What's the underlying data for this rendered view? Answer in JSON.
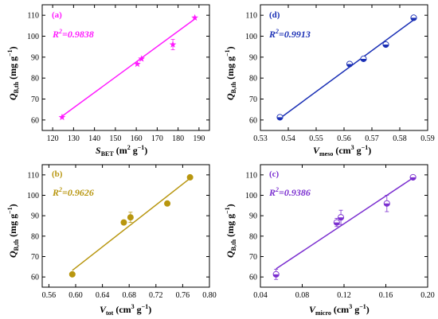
{
  "chart_data": [
    {
      "type": "scatter",
      "panel_label": "(a)",
      "r2_label": "R² =0.9838",
      "r2_prefix": "R",
      "r2_sup": "2",
      "r2_value": "=0.9838",
      "xlabel": {
        "main": "S",
        "sub": "BET",
        "unit": " (m",
        "unit_sup": "2",
        "unit_tail": " g",
        "unit_sup2": "−1",
        "close": ")"
      },
      "ylabel": {
        "main": "Q",
        "sub": "B,th",
        "unit": " (mg g",
        "unit_sup": "−1",
        "close": ")"
      },
      "xlim": [
        115,
        195
      ],
      "ylim": [
        55,
        115
      ],
      "xticks": [
        "120",
        "130",
        "140",
        "150",
        "160",
        "170",
        "180",
        "190"
      ],
      "xtick_values": [
        120,
        130,
        140,
        150,
        160,
        170,
        180,
        190
      ],
      "yticks": [
        "60",
        "70",
        "80",
        "90",
        "100",
        "110"
      ],
      "ytick_values": [
        60,
        70,
        80,
        90,
        100,
        110
      ],
      "marker": "star",
      "color": "#ff1aff",
      "x": [
        124.5,
        160.5,
        162.5,
        177.5,
        188
      ],
      "y": [
        61.3,
        86.7,
        89.2,
        96,
        108.8
      ],
      "fit_line": [
        [
          124.5,
          61.8
        ],
        [
          188,
          108.2
        ]
      ],
      "error": [
        0,
        0,
        0,
        2.5,
        0
      ]
    },
    {
      "type": "scatter",
      "panel_label": "(d)",
      "r2_prefix": "R",
      "r2_sup": "2",
      "r2_value": "=0.9913",
      "xlabel": {
        "main": "V",
        "sub": "meso",
        "unit": " (cm",
        "unit_sup": "3",
        "unit_tail": " g",
        "unit_sup2": "−1",
        "close": ")"
      },
      "ylabel": {
        "main": "Q",
        "sub": "B,th",
        "unit": " (mg g",
        "unit_sup": "−1",
        "close": ")"
      },
      "xlim": [
        0.53,
        0.59
      ],
      "ylim": [
        55,
        115
      ],
      "xticks": [
        "0.53",
        "0.54",
        "0.55",
        "0.56",
        "0.57",
        "0.58",
        "0.59"
      ],
      "xtick_values": [
        0.53,
        0.54,
        0.55,
        0.56,
        0.57,
        0.58,
        0.59
      ],
      "yticks": [
        "60",
        "70",
        "80",
        "90",
        "100",
        "110"
      ],
      "ytick_values": [
        60,
        70,
        80,
        90,
        100,
        110
      ],
      "marker": "half-circle",
      "color": "#1a2fb5",
      "x": [
        0.537,
        0.562,
        0.567,
        0.575,
        0.585
      ],
      "y": [
        61.3,
        86.7,
        89.2,
        96,
        108.8
      ],
      "fit_line": [
        [
          0.537,
          60.8
        ],
        [
          0.585,
          107.8
        ]
      ],
      "error": [
        0,
        0,
        0,
        0,
        0
      ]
    },
    {
      "type": "scatter",
      "panel_label": "(b)",
      "r2_prefix": "R",
      "r2_sup": "2",
      "r2_value": "=0.9626",
      "xlabel": {
        "main": "V",
        "sub": "tot",
        "unit": " (cm",
        "unit_sup": "3",
        "unit_tail": " g",
        "unit_sup2": "−1",
        "close": ")"
      },
      "ylabel": {
        "main": "Q",
        "sub": "B,th",
        "unit": " (mg g",
        "unit_sup": "−1",
        "close": ")"
      },
      "xlim": [
        0.55,
        0.8
      ],
      "ylim": [
        55,
        115
      ],
      "xticks": [
        "0.56",
        "0.60",
        "0.64",
        "0.68",
        "0.72",
        "0.76",
        "0.80"
      ],
      "xtick_values": [
        0.56,
        0.6,
        0.64,
        0.68,
        0.72,
        0.76,
        0.8
      ],
      "yticks": [
        "60",
        "70",
        "80",
        "90",
        "100",
        "110"
      ],
      "ytick_values": [
        60,
        70,
        80,
        90,
        100,
        110
      ],
      "marker": "circle",
      "color": "#b8960f",
      "x": [
        0.595,
        0.672,
        0.682,
        0.737,
        0.771
      ],
      "y": [
        61.3,
        86.7,
        89.2,
        96,
        108.8
      ],
      "fit_line": [
        [
          0.595,
          63.2
        ],
        [
          0.771,
          108.3
        ]
      ],
      "error": [
        0,
        0,
        2.5,
        0,
        0
      ]
    },
    {
      "type": "scatter",
      "panel_label": "(c)",
      "r2_prefix": "R",
      "r2_sup": "2",
      "r2_value": "=0.9386",
      "xlabel": {
        "main": "V",
        "sub": "micro",
        "unit": " (cm",
        "unit_sup": "3",
        "unit_tail": " g",
        "unit_sup2": "−1",
        "close": ")"
      },
      "ylabel": {
        "main": "Q",
        "sub": "B,th",
        "unit": " (mg g",
        "unit_sup": "−1",
        "close": ")"
      },
      "xlim": [
        0.04,
        0.2
      ],
      "ylim": [
        55,
        115
      ],
      "xticks": [
        "0.04",
        "0.08",
        "0.12",
        "0.16",
        "0.20"
      ],
      "xtick_values": [
        0.04,
        0.08,
        0.12,
        0.16,
        0.2
      ],
      "yticks": [
        "60",
        "70",
        "80",
        "90",
        "100",
        "110"
      ],
      "ytick_values": [
        60,
        70,
        80,
        90,
        100,
        110
      ],
      "marker": "half-circle",
      "color": "#7b2fd0",
      "x": [
        0.055,
        0.113,
        0.117,
        0.161,
        0.186
      ],
      "y": [
        61.3,
        86.7,
        89.2,
        96,
        108.8
      ],
      "fit_line": [
        [
          0.055,
          64
        ],
        [
          0.186,
          108.5
        ]
      ],
      "error": [
        2.5,
        2,
        3.5,
        4,
        0
      ]
    }
  ]
}
